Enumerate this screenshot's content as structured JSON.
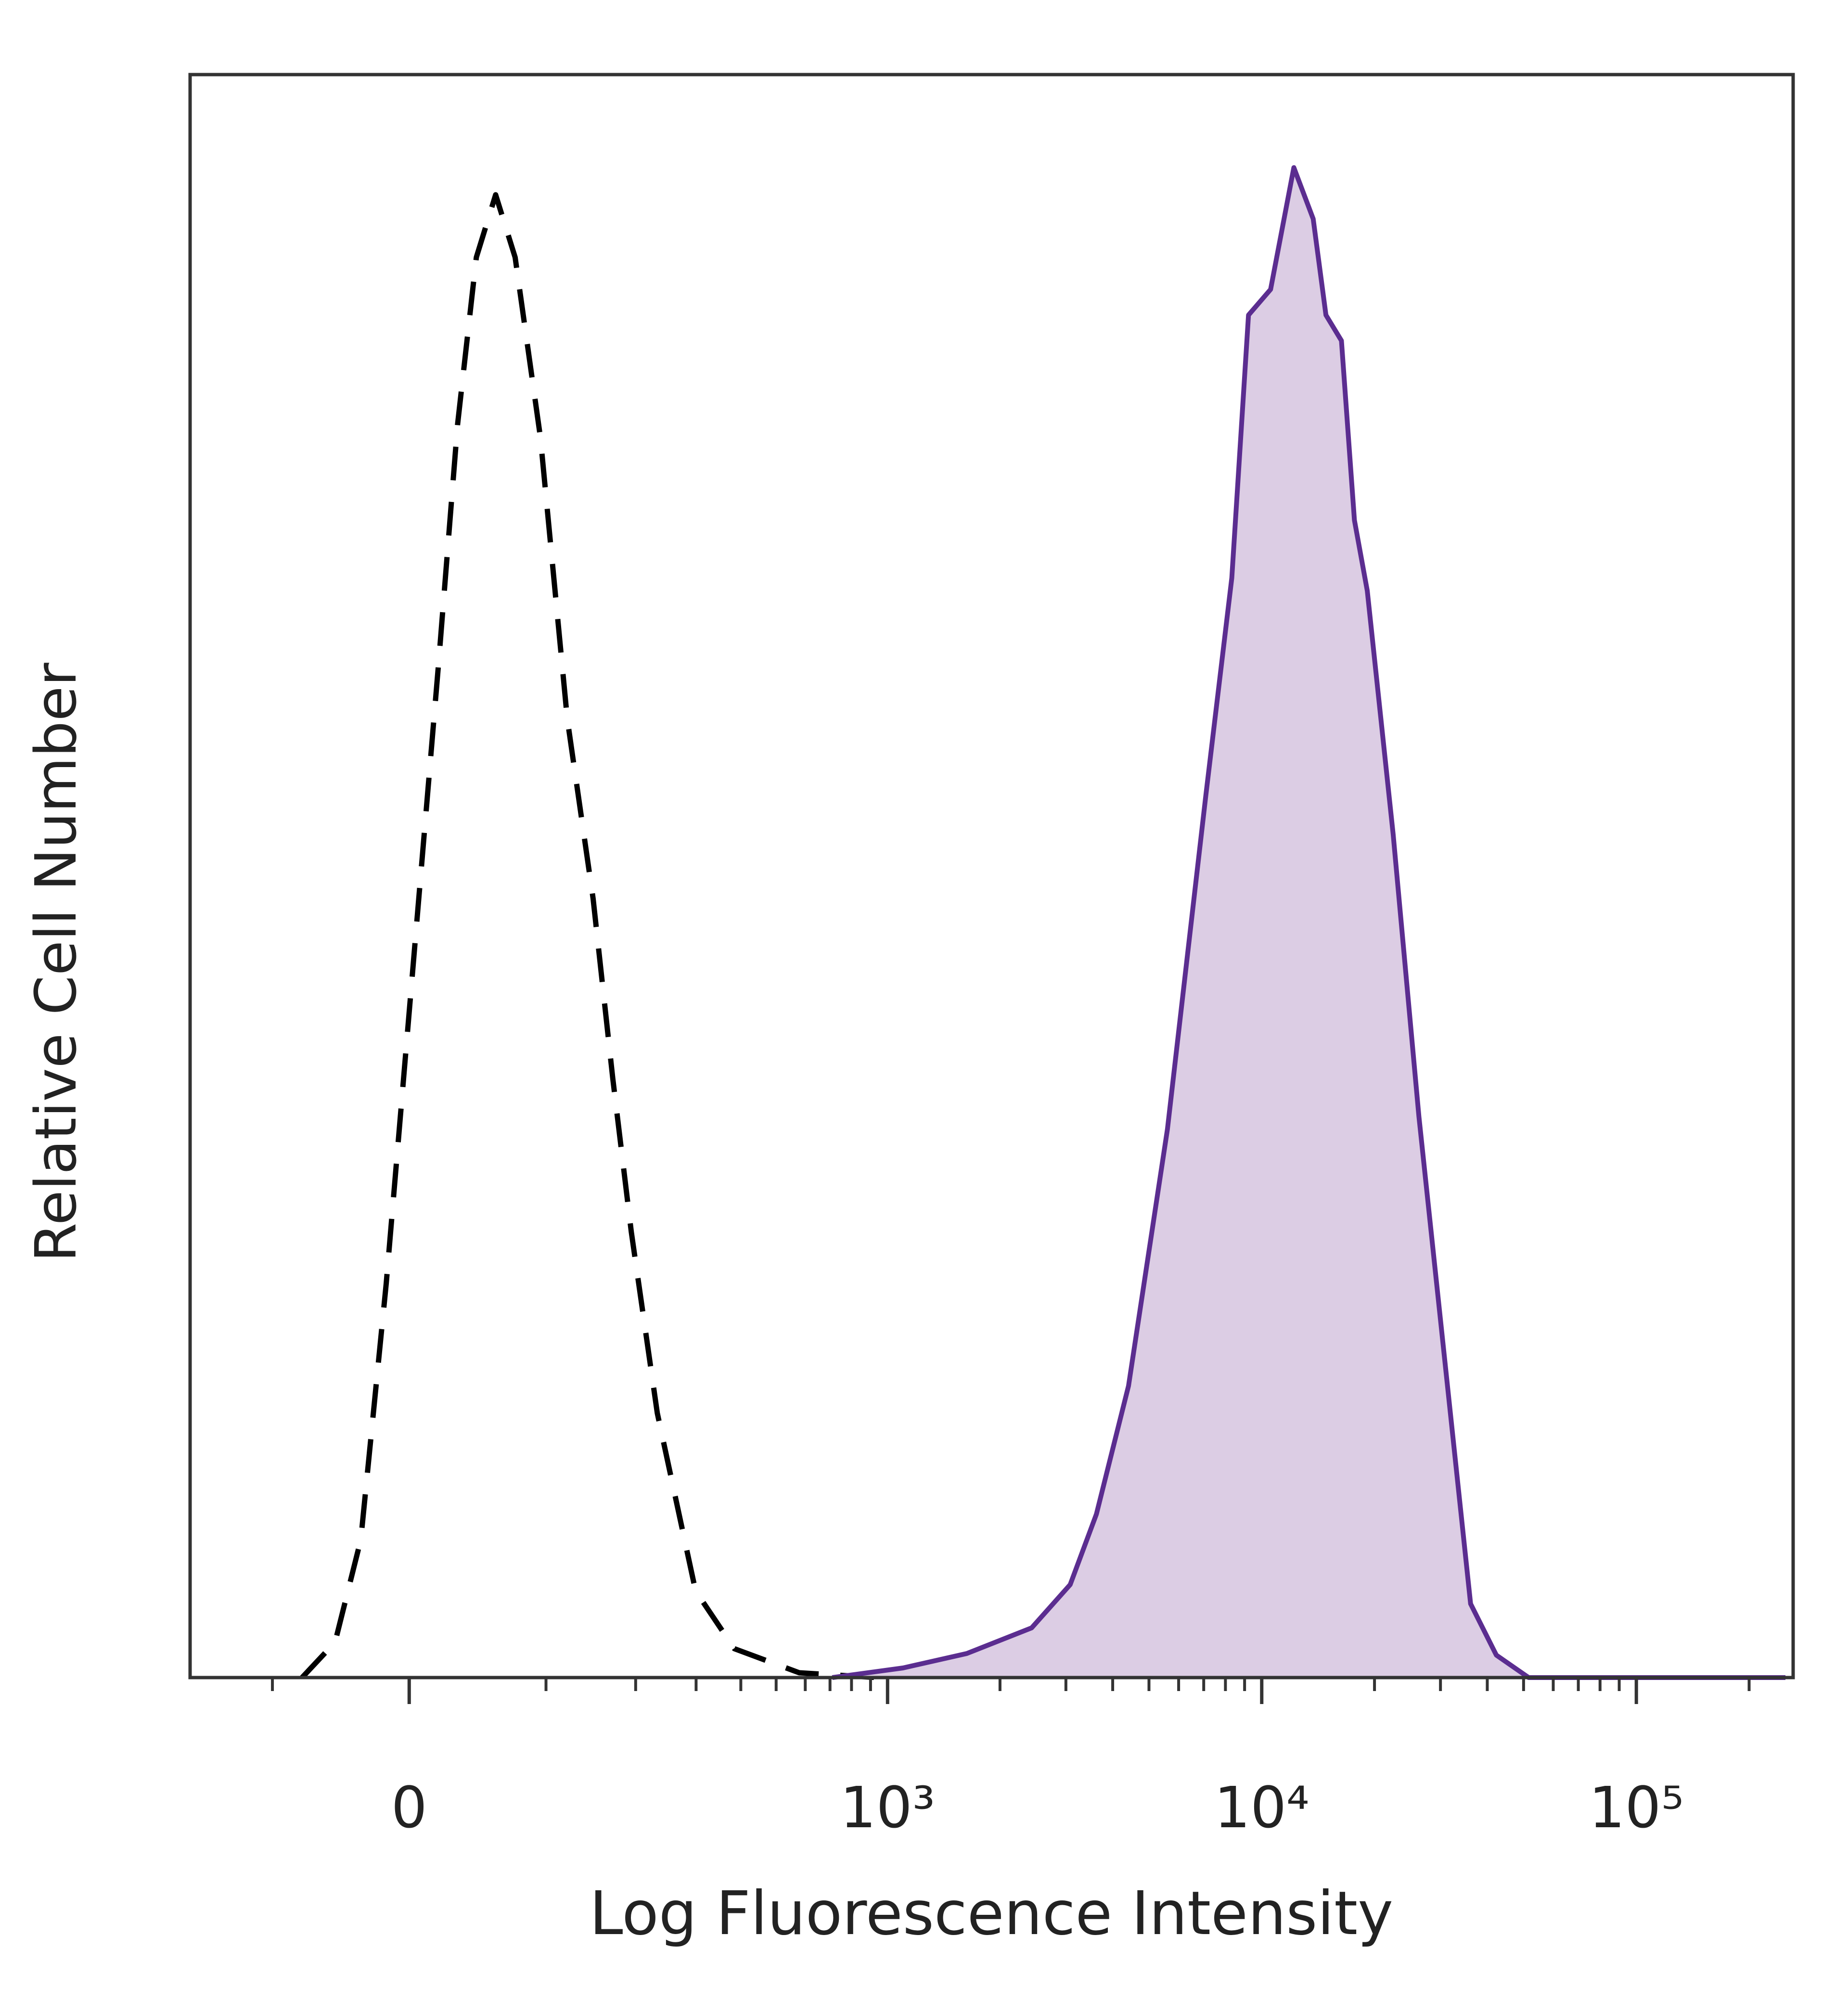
{
  "chart_data": {
    "type": "histogram_overlay",
    "xlabel": "Log Fluorescence Intensity",
    "ylabel": "Relative Cell Number",
    "xscale": "asinh",
    "xlim": [
      -190,
      262144
    ],
    "ylim": [
      0,
      100
    ],
    "xticks": [
      0,
      {
        "value": 1000,
        "label": "10³"
      },
      {
        "value": 10000,
        "label": "10⁴"
      },
      {
        "value": 100000,
        "label": "10⁵"
      }
    ],
    "xminorticks": [
      -100,
      100,
      200,
      300,
      400,
      500,
      600,
      700,
      800,
      900,
      2000,
      3000,
      4000,
      5000,
      6000,
      7000,
      8000,
      9000,
      20000,
      30000,
      40000,
      50000,
      60000,
      70000,
      80000,
      90000,
      200000
    ],
    "series": [
      {
        "color": "#000000",
        "dashed": true,
        "x": [
          -75,
          -50,
          -32,
          -15,
          2,
          19,
          32,
          45,
          59,
          74,
          95,
          120,
          147,
          170,
          194,
          232,
          299,
          384,
          578,
          935
        ],
        "values": [
          0,
          2.2,
          8.6,
          24.6,
          43.8,
          63.0,
          78.2,
          88.6,
          92.5,
          88.6,
          77.4,
          59.8,
          48.6,
          37.4,
          27.8,
          16.5,
          5.4,
          1.8,
          0.3,
          0
        ]
      },
      {
        "color": "#5b2d90",
        "fill": "#dccde4",
        "x": [
          710,
          1100,
          1630,
          2430,
          3080,
          3620,
          4410,
          5600,
          7090,
          8320,
          9220,
          10560,
          12180,
          13720,
          14840,
          16320,
          17680,
          19130,
          22430,
          26280,
          30800,
          36100,
          42300,
          51600,
          250000
        ],
        "values": [
          0,
          0.6,
          1.5,
          3.1,
          5.8,
          10.2,
          18.2,
          34.2,
          55.0,
          68.6,
          85.0,
          86.6,
          94.2,
          91.0,
          85.0,
          83.4,
          72.2,
          67.8,
          52.6,
          35.0,
          19.8,
          4.6,
          1.4,
          0,
          0
        ]
      }
    ]
  }
}
